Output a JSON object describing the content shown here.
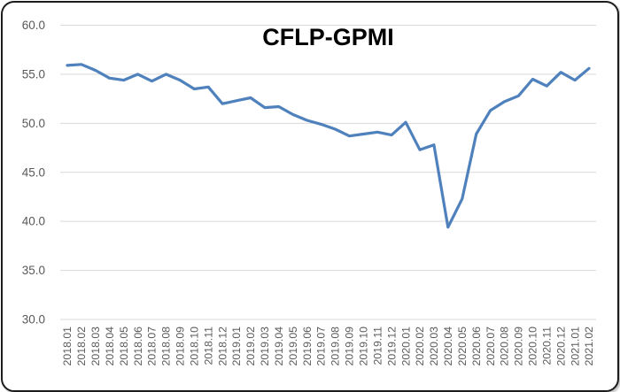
{
  "chart_data": {
    "type": "line",
    "title": "CFLP-GPMI",
    "xlabel": "",
    "ylabel": "",
    "categories": [
      "2018.01",
      "2018.02",
      "2018.03",
      "2018.04",
      "2018.05",
      "2018.06",
      "2018.07",
      "2018.08",
      "2018.09",
      "2018.10",
      "2018.11",
      "2018.12",
      "2019.01",
      "2019.02",
      "2019.03",
      "2019.04",
      "2019.05",
      "2019.06",
      "2019.07",
      "2019.08",
      "2019.09",
      "2019.10",
      "2019.11",
      "2019.12",
      "2020.01",
      "2020.02",
      "2020.03",
      "2020.04",
      "2020.05",
      "2020.06",
      "2020.07",
      "2020.08",
      "2020.09",
      "2020.10",
      "2020.11",
      "2020.12",
      "2021.01",
      "2021.02"
    ],
    "values": [
      55.9,
      56.0,
      55.4,
      54.6,
      54.4,
      55.0,
      54.3,
      55.0,
      54.4,
      53.5,
      53.7,
      52.0,
      52.3,
      52.6,
      51.6,
      51.7,
      50.9,
      50.3,
      49.9,
      49.4,
      48.7,
      48.9,
      49.1,
      48.8,
      50.1,
      47.3,
      47.8,
      39.4,
      42.3,
      48.9,
      51.3,
      52.2,
      52.8,
      54.5,
      53.8,
      55.2,
      54.4,
      55.6
    ],
    "ylim": [
      30.0,
      60.0
    ],
    "y_tick_step": 5.0,
    "y_tick_labels": [
      "60.0",
      "55.0",
      "50.0",
      "45.0",
      "40.0",
      "35.0",
      "30.0"
    ],
    "grid": true,
    "legend_position": "none",
    "colors": {
      "line": "#4F81BD",
      "grid": "#D9D9D9",
      "tick_label": "#595959",
      "title": "#000000",
      "background": "#FFFFFF",
      "frame_border": "#1C1C1C"
    }
  }
}
